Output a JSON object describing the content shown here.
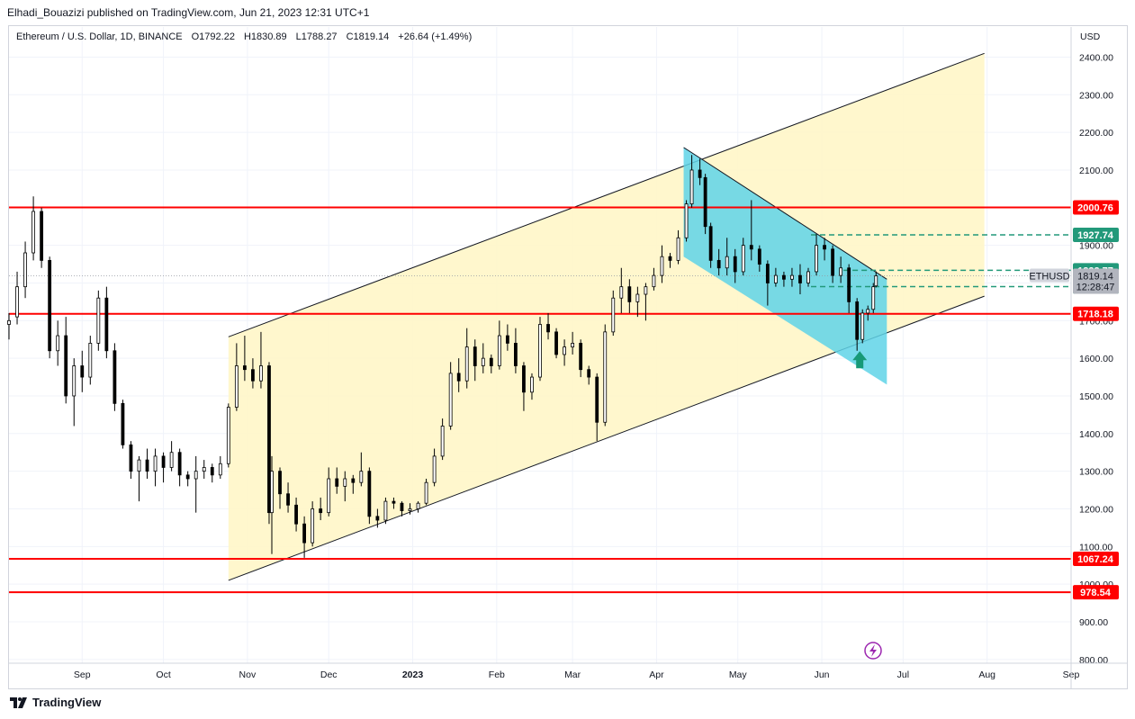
{
  "header": {
    "publisher_text": "Elhadi_Bouazizi published on TradingView.com, Jun 21, 2023 12:31 UTC+1"
  },
  "legend": {
    "symbol": "Ethereum / U.S. Dollar, 1D, BINANCE",
    "open": "O1792.22",
    "high": "H1830.89",
    "low": "L1788.27",
    "close": "C1819.14",
    "change": "+26.64 (+1.49%)"
  },
  "footer": {
    "brand": "TradingView"
  },
  "colors": {
    "up_candle": "#000000",
    "support_resistance": "#ff0000",
    "channel_fill": "#fff6c8",
    "falling_channel_fill": "#5fd3e8",
    "falling_channel_fill_inner": "#7fdcb0",
    "target_line": "#22997a",
    "arrow": "#179977",
    "replay_icon": "#9c27b0"
  },
  "chart_data": {
    "type": "candlestick",
    "title": "Ethereum / U.S. Dollar, 1D, BINANCE",
    "y_axis": {
      "unit": "USD",
      "ticks": [
        800,
        900,
        1000,
        1100,
        1200,
        1300,
        1400,
        1500,
        1600,
        1700,
        1800,
        1900,
        2000,
        2100,
        2200,
        2300,
        2400
      ],
      "tick_labels": [
        "800.00",
        "900.00",
        "1000.00",
        "1100.00",
        "1200.00",
        "1300.00",
        "1400.00",
        "1500.00",
        "1600.00",
        "1700.00",
        "1800.00",
        "1900.00",
        "2000.00",
        "2100.00",
        "2200.00",
        "2300.00",
        "2400.00"
      ],
      "ylim": [
        790,
        2480
      ],
      "position": "right"
    },
    "x_axis": {
      "tick_labels": [
        "Sep",
        "Oct",
        "Nov",
        "Dec",
        "2023",
        "Feb",
        "Mar",
        "Apr",
        "May",
        "Jun",
        "Jul",
        "Aug",
        "Sep"
      ],
      "tick_dates": [
        "2022-09-01",
        "2022-10-01",
        "2022-11-01",
        "2022-12-01",
        "2023-01-01",
        "2023-02-01",
        "2023-03-01",
        "2023-04-01",
        "2023-05-01",
        "2023-06-01",
        "2023-07-01",
        "2023-08-01",
        "2023-09-01"
      ],
      "xlim": [
        "2022-08-05",
        "2023-09-01"
      ]
    },
    "horizontal_levels": [
      {
        "value": 2000.76,
        "label": "2000.76",
        "color": "#ff0000",
        "style": "solid"
      },
      {
        "value": 1718.18,
        "label": "1718.18",
        "color": "#ff0000",
        "style": "solid"
      },
      {
        "value": 1067.24,
        "label": "1067.24",
        "color": "#ff0000",
        "style": "solid"
      },
      {
        "value": 978.54,
        "label": "978.54",
        "color": "#ff0000",
        "style": "solid"
      },
      {
        "value": 1927.74,
        "label": "1927.74",
        "color": "#22997a",
        "style": "dashed",
        "start_date": "2023-05-28"
      },
      {
        "value": 1833.77,
        "label": "1833.77",
        "color": "#22997a",
        "style": "dashed",
        "start_date": "2023-06-09"
      },
      {
        "value": 1790.27,
        "label": "1790.27",
        "color": "#22997a",
        "style": "dashed",
        "start_date": "2023-05-28"
      }
    ],
    "price_tag": {
      "symbol": "ETHUSD",
      "value": "1819.14",
      "countdown": "12:28:47"
    },
    "rising_channel": {
      "lower_start": {
        "date": "2022-10-25",
        "price": 1010
      },
      "lower_end": {
        "date": "2023-07-31",
        "price": 1765
      },
      "upper_start": {
        "date": "2022-10-25",
        "price": 1657
      },
      "upper_end": {
        "date": "2023-07-31",
        "price": 2410
      }
    },
    "falling_channel": {
      "upper_start": {
        "date": "2023-04-11",
        "price": 2160
      },
      "upper_end": {
        "date": "2023-06-25",
        "price": 1810
      },
      "lower_start": {
        "date": "2023-04-11",
        "price": 1870
      },
      "lower_end": {
        "date": "2023-06-25",
        "price": 1530
      }
    },
    "arrow": {
      "date": "2023-06-15",
      "price": 1595,
      "direction": "up"
    },
    "candles": [
      {
        "d": "2022-08-05",
        "o": 1690,
        "h": 1720,
        "l": 1650,
        "c": 1700
      },
      {
        "d": "2022-08-08",
        "o": 1710,
        "h": 1830,
        "l": 1690,
        "c": 1790
      },
      {
        "d": "2022-08-11",
        "o": 1790,
        "h": 1910,
        "l": 1760,
        "c": 1880
      },
      {
        "d": "2022-08-14",
        "o": 1880,
        "h": 2030,
        "l": 1860,
        "c": 1990
      },
      {
        "d": "2022-08-17",
        "o": 1990,
        "h": 2000,
        "l": 1840,
        "c": 1860
      },
      {
        "d": "2022-08-20",
        "o": 1860,
        "h": 1870,
        "l": 1600,
        "c": 1620
      },
      {
        "d": "2022-08-23",
        "o": 1620,
        "h": 1700,
        "l": 1580,
        "c": 1660
      },
      {
        "d": "2022-08-26",
        "o": 1660,
        "h": 1710,
        "l": 1480,
        "c": 1500
      },
      {
        "d": "2022-08-29",
        "o": 1500,
        "h": 1600,
        "l": 1420,
        "c": 1580
      },
      {
        "d": "2022-09-01",
        "o": 1580,
        "h": 1620,
        "l": 1510,
        "c": 1550
      },
      {
        "d": "2022-09-04",
        "o": 1550,
        "h": 1660,
        "l": 1530,
        "c": 1640
      },
      {
        "d": "2022-09-07",
        "o": 1640,
        "h": 1780,
        "l": 1620,
        "c": 1760
      },
      {
        "d": "2022-09-10",
        "o": 1760,
        "h": 1790,
        "l": 1600,
        "c": 1620
      },
      {
        "d": "2022-09-13",
        "o": 1620,
        "h": 1640,
        "l": 1460,
        "c": 1480
      },
      {
        "d": "2022-09-16",
        "o": 1480,
        "h": 1490,
        "l": 1360,
        "c": 1370
      },
      {
        "d": "2022-09-19",
        "o": 1370,
        "h": 1380,
        "l": 1280,
        "c": 1300
      },
      {
        "d": "2022-09-22",
        "o": 1300,
        "h": 1340,
        "l": 1220,
        "c": 1330
      },
      {
        "d": "2022-09-25",
        "o": 1330,
        "h": 1360,
        "l": 1280,
        "c": 1300
      },
      {
        "d": "2022-09-28",
        "o": 1300,
        "h": 1360,
        "l": 1260,
        "c": 1340
      },
      {
        "d": "2022-10-01",
        "o": 1340,
        "h": 1350,
        "l": 1270,
        "c": 1310
      },
      {
        "d": "2022-10-04",
        "o": 1310,
        "h": 1380,
        "l": 1300,
        "c": 1350
      },
      {
        "d": "2022-10-07",
        "o": 1350,
        "h": 1360,
        "l": 1260,
        "c": 1290
      },
      {
        "d": "2022-10-10",
        "o": 1290,
        "h": 1300,
        "l": 1260,
        "c": 1280
      },
      {
        "d": "2022-10-13",
        "o": 1280,
        "h": 1340,
        "l": 1190,
        "c": 1300
      },
      {
        "d": "2022-10-16",
        "o": 1300,
        "h": 1330,
        "l": 1280,
        "c": 1310
      },
      {
        "d": "2022-10-19",
        "o": 1310,
        "h": 1320,
        "l": 1270,
        "c": 1290
      },
      {
        "d": "2022-10-22",
        "o": 1290,
        "h": 1340,
        "l": 1280,
        "c": 1320
      },
      {
        "d": "2022-10-25",
        "o": 1320,
        "h": 1480,
        "l": 1310,
        "c": 1470
      },
      {
        "d": "2022-10-28",
        "o": 1470,
        "h": 1640,
        "l": 1460,
        "c": 1580
      },
      {
        "d": "2022-10-31",
        "o": 1580,
        "h": 1660,
        "l": 1540,
        "c": 1570
      },
      {
        "d": "2022-11-03",
        "o": 1570,
        "h": 1600,
        "l": 1520,
        "c": 1540
      },
      {
        "d": "2022-11-06",
        "o": 1540,
        "h": 1670,
        "l": 1520,
        "c": 1580
      },
      {
        "d": "2022-11-09",
        "o": 1580,
        "h": 1590,
        "l": 1160,
        "c": 1190
      },
      {
        "d": "2022-11-10",
        "o": 1190,
        "h": 1340,
        "l": 1080,
        "c": 1300
      },
      {
        "d": "2022-11-13",
        "o": 1300,
        "h": 1310,
        "l": 1200,
        "c": 1240
      },
      {
        "d": "2022-11-16",
        "o": 1240,
        "h": 1270,
        "l": 1190,
        "c": 1210
      },
      {
        "d": "2022-11-19",
        "o": 1210,
        "h": 1230,
        "l": 1140,
        "c": 1160
      },
      {
        "d": "2022-11-22",
        "o": 1160,
        "h": 1180,
        "l": 1070,
        "c": 1110
      },
      {
        "d": "2022-11-25",
        "o": 1110,
        "h": 1220,
        "l": 1100,
        "c": 1200
      },
      {
        "d": "2022-11-28",
        "o": 1200,
        "h": 1230,
        "l": 1170,
        "c": 1190
      },
      {
        "d": "2022-12-01",
        "o": 1190,
        "h": 1310,
        "l": 1180,
        "c": 1280
      },
      {
        "d": "2022-12-04",
        "o": 1280,
        "h": 1310,
        "l": 1240,
        "c": 1260
      },
      {
        "d": "2022-12-07",
        "o": 1260,
        "h": 1300,
        "l": 1220,
        "c": 1280
      },
      {
        "d": "2022-12-10",
        "o": 1280,
        "h": 1290,
        "l": 1240,
        "c": 1270
      },
      {
        "d": "2022-12-13",
        "o": 1270,
        "h": 1350,
        "l": 1260,
        "c": 1300
      },
      {
        "d": "2022-12-16",
        "o": 1300,
        "h": 1310,
        "l": 1160,
        "c": 1180
      },
      {
        "d": "2022-12-19",
        "o": 1180,
        "h": 1200,
        "l": 1150,
        "c": 1170
      },
      {
        "d": "2022-12-22",
        "o": 1170,
        "h": 1230,
        "l": 1160,
        "c": 1220
      },
      {
        "d": "2022-12-25",
        "o": 1220,
        "h": 1230,
        "l": 1200,
        "c": 1215
      },
      {
        "d": "2022-12-28",
        "o": 1215,
        "h": 1220,
        "l": 1180,
        "c": 1195
      },
      {
        "d": "2022-12-31",
        "o": 1195,
        "h": 1215,
        "l": 1185,
        "c": 1200
      },
      {
        "d": "2023-01-03",
        "o": 1200,
        "h": 1220,
        "l": 1190,
        "c": 1215
      },
      {
        "d": "2023-01-06",
        "o": 1215,
        "h": 1280,
        "l": 1210,
        "c": 1270
      },
      {
        "d": "2023-01-09",
        "o": 1270,
        "h": 1360,
        "l": 1260,
        "c": 1340
      },
      {
        "d": "2023-01-12",
        "o": 1340,
        "h": 1440,
        "l": 1330,
        "c": 1420
      },
      {
        "d": "2023-01-15",
        "o": 1420,
        "h": 1590,
        "l": 1410,
        "c": 1560
      },
      {
        "d": "2023-01-18",
        "o": 1560,
        "h": 1600,
        "l": 1510,
        "c": 1540
      },
      {
        "d": "2023-01-21",
        "o": 1540,
        "h": 1680,
        "l": 1520,
        "c": 1630
      },
      {
        "d": "2023-01-24",
        "o": 1630,
        "h": 1650,
        "l": 1540,
        "c": 1580
      },
      {
        "d": "2023-01-27",
        "o": 1580,
        "h": 1640,
        "l": 1560,
        "c": 1600
      },
      {
        "d": "2023-01-30",
        "o": 1600,
        "h": 1610,
        "l": 1560,
        "c": 1580
      },
      {
        "d": "2023-02-02",
        "o": 1580,
        "h": 1700,
        "l": 1570,
        "c": 1660
      },
      {
        "d": "2023-02-05",
        "o": 1660,
        "h": 1690,
        "l": 1620,
        "c": 1640
      },
      {
        "d": "2023-02-08",
        "o": 1640,
        "h": 1680,
        "l": 1560,
        "c": 1580
      },
      {
        "d": "2023-02-11",
        "o": 1580,
        "h": 1590,
        "l": 1460,
        "c": 1510
      },
      {
        "d": "2023-02-14",
        "o": 1510,
        "h": 1560,
        "l": 1490,
        "c": 1550
      },
      {
        "d": "2023-02-17",
        "o": 1550,
        "h": 1710,
        "l": 1540,
        "c": 1690
      },
      {
        "d": "2023-02-20",
        "o": 1690,
        "h": 1720,
        "l": 1650,
        "c": 1670
      },
      {
        "d": "2023-02-23",
        "o": 1670,
        "h": 1680,
        "l": 1600,
        "c": 1610
      },
      {
        "d": "2023-02-26",
        "o": 1610,
        "h": 1650,
        "l": 1580,
        "c": 1630
      },
      {
        "d": "2023-03-01",
        "o": 1630,
        "h": 1670,
        "l": 1610,
        "c": 1640
      },
      {
        "d": "2023-03-04",
        "o": 1640,
        "h": 1650,
        "l": 1550,
        "c": 1570
      },
      {
        "d": "2023-03-07",
        "o": 1570,
        "h": 1580,
        "l": 1530,
        "c": 1550
      },
      {
        "d": "2023-03-10",
        "o": 1550,
        "h": 1560,
        "l": 1380,
        "c": 1430
      },
      {
        "d": "2023-03-13",
        "o": 1430,
        "h": 1690,
        "l": 1420,
        "c": 1670
      },
      {
        "d": "2023-03-16",
        "o": 1670,
        "h": 1780,
        "l": 1660,
        "c": 1760
      },
      {
        "d": "2023-03-19",
        "o": 1760,
        "h": 1840,
        "l": 1720,
        "c": 1790
      },
      {
        "d": "2023-03-22",
        "o": 1790,
        "h": 1810,
        "l": 1720,
        "c": 1750
      },
      {
        "d": "2023-03-25",
        "o": 1750,
        "h": 1790,
        "l": 1710,
        "c": 1770
      },
      {
        "d": "2023-03-28",
        "o": 1770,
        "h": 1800,
        "l": 1700,
        "c": 1790
      },
      {
        "d": "2023-03-31",
        "o": 1790,
        "h": 1840,
        "l": 1780,
        "c": 1820
      },
      {
        "d": "2023-04-03",
        "o": 1820,
        "h": 1900,
        "l": 1800,
        "c": 1870
      },
      {
        "d": "2023-04-06",
        "o": 1870,
        "h": 1880,
        "l": 1840,
        "c": 1860
      },
      {
        "d": "2023-04-09",
        "o": 1860,
        "h": 1940,
        "l": 1850,
        "c": 1920
      },
      {
        "d": "2023-04-12",
        "o": 1920,
        "h": 2020,
        "l": 1910,
        "c": 2010
      },
      {
        "d": "2023-04-14",
        "o": 2010,
        "h": 2140,
        "l": 2000,
        "c": 2100
      },
      {
        "d": "2023-04-17",
        "o": 2100,
        "h": 2130,
        "l": 2060,
        "c": 2080
      },
      {
        "d": "2023-04-19",
        "o": 2080,
        "h": 2090,
        "l": 1930,
        "c": 1950
      },
      {
        "d": "2023-04-21",
        "o": 1950,
        "h": 1960,
        "l": 1840,
        "c": 1860
      },
      {
        "d": "2023-04-24",
        "o": 1860,
        "h": 1890,
        "l": 1820,
        "c": 1840
      },
      {
        "d": "2023-04-27",
        "o": 1840,
        "h": 1920,
        "l": 1820,
        "c": 1870
      },
      {
        "d": "2023-04-30",
        "o": 1870,
        "h": 1890,
        "l": 1800,
        "c": 1830
      },
      {
        "d": "2023-05-03",
        "o": 1830,
        "h": 1920,
        "l": 1820,
        "c": 1900
      },
      {
        "d": "2023-05-06",
        "o": 1900,
        "h": 2020,
        "l": 1860,
        "c": 1890
      },
      {
        "d": "2023-05-09",
        "o": 1890,
        "h": 1900,
        "l": 1830,
        "c": 1850
      },
      {
        "d": "2023-05-12",
        "o": 1850,
        "h": 1860,
        "l": 1740,
        "c": 1800
      },
      {
        "d": "2023-05-15",
        "o": 1800,
        "h": 1840,
        "l": 1790,
        "c": 1820
      },
      {
        "d": "2023-05-18",
        "o": 1820,
        "h": 1830,
        "l": 1790,
        "c": 1810
      },
      {
        "d": "2023-05-21",
        "o": 1810,
        "h": 1840,
        "l": 1790,
        "c": 1820
      },
      {
        "d": "2023-05-24",
        "o": 1820,
        "h": 1850,
        "l": 1770,
        "c": 1800
      },
      {
        "d": "2023-05-27",
        "o": 1800,
        "h": 1840,
        "l": 1790,
        "c": 1830
      },
      {
        "d": "2023-05-30",
        "o": 1830,
        "h": 1930,
        "l": 1820,
        "c": 1900
      },
      {
        "d": "2023-06-02",
        "o": 1900,
        "h": 1920,
        "l": 1860,
        "c": 1890
      },
      {
        "d": "2023-06-05",
        "o": 1890,
        "h": 1900,
        "l": 1800,
        "c": 1820
      },
      {
        "d": "2023-06-08",
        "o": 1820,
        "h": 1870,
        "l": 1800,
        "c": 1840
      },
      {
        "d": "2023-06-11",
        "o": 1840,
        "h": 1850,
        "l": 1720,
        "c": 1750
      },
      {
        "d": "2023-06-14",
        "o": 1750,
        "h": 1760,
        "l": 1620,
        "c": 1650
      },
      {
        "d": "2023-06-16",
        "o": 1650,
        "h": 1730,
        "l": 1640,
        "c": 1720
      },
      {
        "d": "2023-06-18",
        "o": 1720,
        "h": 1740,
        "l": 1700,
        "c": 1730
      },
      {
        "d": "2023-06-20",
        "o": 1730,
        "h": 1800,
        "l": 1720,
        "c": 1790
      },
      {
        "d": "2023-06-21",
        "o": 1792.22,
        "h": 1830.89,
        "l": 1788.27,
        "c": 1819.14
      }
    ]
  }
}
